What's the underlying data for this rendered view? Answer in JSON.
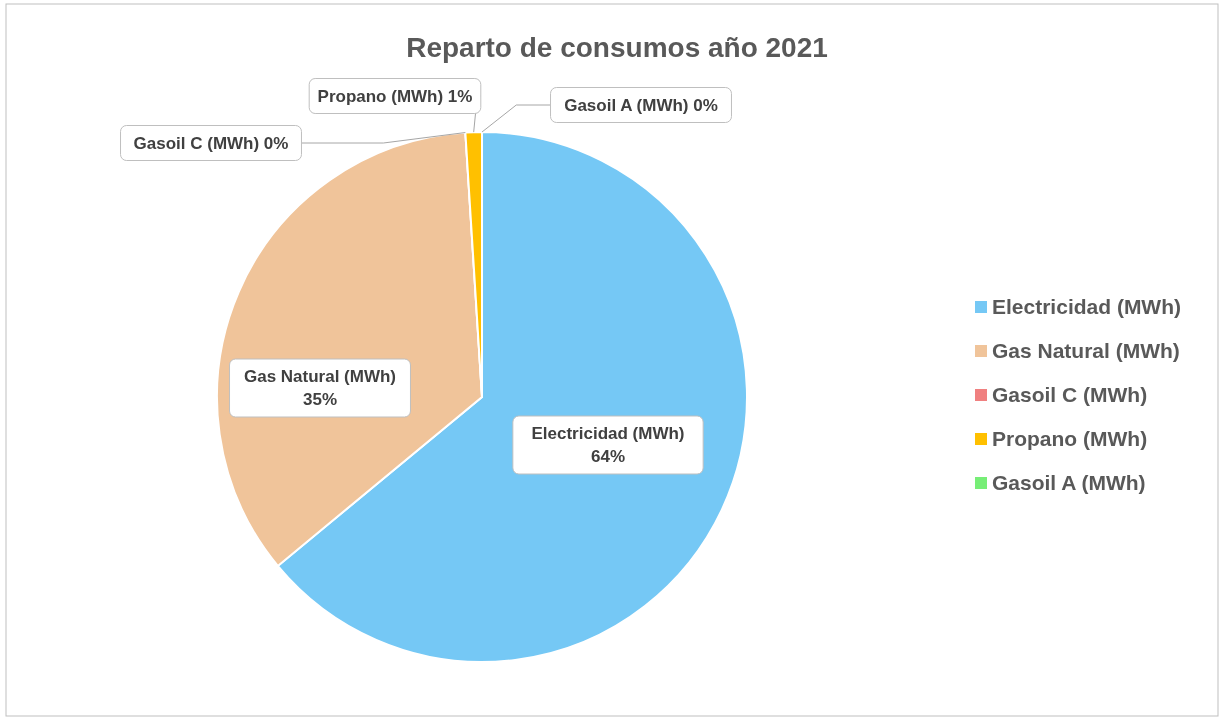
{
  "chart_data": {
    "type": "pie",
    "title": "Reparto de consumos año 2021",
    "categories": [
      "Electricidad (MWh)",
      "Gas Natural (MWh)",
      "Gasoil C (MWh)",
      "Propano (MWh)",
      "Gasoil A (MWh)"
    ],
    "values": [
      64,
      35,
      0,
      1,
      0
    ],
    "value_labels": [
      "64%",
      "35%",
      "0%",
      "1%",
      "0%"
    ],
    "colors": [
      "#75c8f5",
      "#f0c49a",
      "#f08080",
      "#ffc000",
      "#77ee77"
    ],
    "legend": "right"
  }
}
